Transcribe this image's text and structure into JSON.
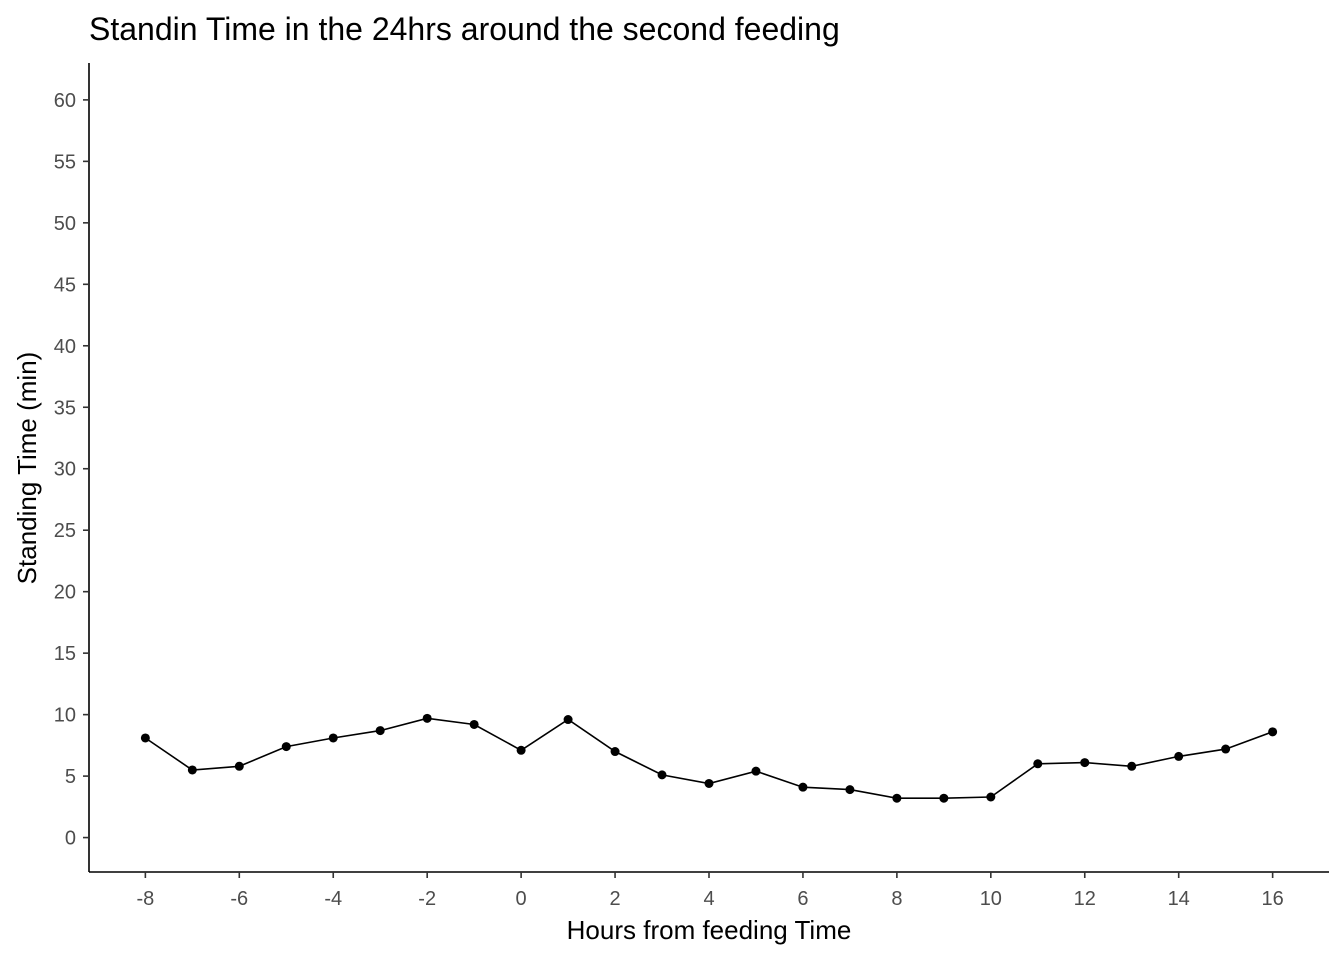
{
  "chart_data": {
    "type": "line",
    "title": "Standin Time in the 24hrs around the second feeding",
    "xlabel": "Hours from feeding Time",
    "ylabel": "Standing Time (min)",
    "xlim": [
      -9.2,
      17.2
    ],
    "ylim": [
      -2.8,
      63
    ],
    "x_ticks": [
      -8,
      -6,
      -4,
      -2,
      0,
      2,
      4,
      6,
      8,
      10,
      12,
      14,
      16
    ],
    "y_ticks": [
      0,
      5,
      10,
      15,
      20,
      25,
      30,
      35,
      40,
      45,
      50,
      55,
      60
    ],
    "grid": false,
    "legend": "none",
    "series": [
      {
        "x": [
          -8,
          -7,
          -6,
          -5,
          -4,
          -3,
          -2,
          -1,
          0,
          1,
          2,
          3,
          4,
          5,
          6,
          7,
          8,
          9,
          10,
          11,
          12,
          13,
          14,
          15,
          16
        ],
        "y": [
          8.1,
          5.5,
          5.8,
          7.4,
          8.1,
          8.7,
          9.7,
          9.2,
          7.1,
          9.6,
          7.0,
          5.1,
          4.4,
          5.4,
          4.1,
          3.9,
          3.2,
          3.2,
          3.3,
          6.0,
          6.1,
          5.8,
          6.6,
          7.2,
          8.6
        ],
        "color": "#000000"
      }
    ]
  }
}
